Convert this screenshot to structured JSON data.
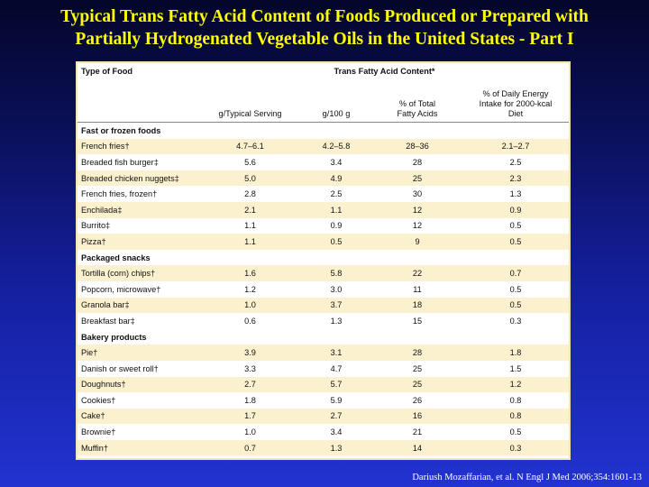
{
  "title": {
    "line1": "Typical Trans Fatty Acid Content of Foods Produced or Prepared with",
    "line2": "Partially Hydrogenated Vegetable Oils in the United States - Part I"
  },
  "table": {
    "header_type": "Type of Food",
    "header_tfa": "Trans Fatty Acid Content*",
    "col_serving": "g/Typical Serving",
    "col_100g": "g/100 g",
    "col_pct_line1": "% of Total",
    "col_pct_line2": "Fatty Acids",
    "col_energy_line1": "% of Daily Energy",
    "col_energy_line2": "Intake for 2000-kcal",
    "col_energy_line3": "Diet",
    "sections": [
      {
        "name": "Fast or frozen foods",
        "rows": [
          {
            "food": "French fries†",
            "serving": "4.7–6.1",
            "per100": "4.2–5.8",
            "pct": "28–36",
            "energy": "2.1–2.7"
          },
          {
            "food": "Breaded fish burger‡",
            "serving": "5.6",
            "per100": "3.4",
            "pct": "28",
            "energy": "2.5"
          },
          {
            "food": "Breaded chicken nuggets‡",
            "serving": "5.0",
            "per100": "4.9",
            "pct": "25",
            "energy": "2.3"
          },
          {
            "food": "French fries, frozen†",
            "serving": "2.8",
            "per100": "2.5",
            "pct": "30",
            "energy": "1.3"
          },
          {
            "food": "Enchilada‡",
            "serving": "2.1",
            "per100": "1.1",
            "pct": "12",
            "energy": "0.9"
          },
          {
            "food": "Burrito‡",
            "serving": "1.1",
            "per100": "0.9",
            "pct": "12",
            "energy": "0.5"
          },
          {
            "food": "Pizza†",
            "serving": "1.1",
            "per100": "0.5",
            "pct": "9",
            "energy": "0.5"
          }
        ]
      },
      {
        "name": "Packaged snacks",
        "rows": [
          {
            "food": "Tortilla (corn) chips†",
            "serving": "1.6",
            "per100": "5.8",
            "pct": "22",
            "energy": "0.7"
          },
          {
            "food": "Popcorn, microwave†",
            "serving": "1.2",
            "per100": "3.0",
            "pct": "11",
            "energy": "0.5"
          },
          {
            "food": "Granola bar‡",
            "serving": "1.0",
            "per100": "3.7",
            "pct": "18",
            "energy": "0.5"
          },
          {
            "food": "Breakfast bar‡",
            "serving": "0.6",
            "per100": "1.3",
            "pct": "15",
            "energy": "0.3"
          }
        ]
      },
      {
        "name": "Bakery products",
        "rows": [
          {
            "food": "Pie†",
            "serving": "3.9",
            "per100": "3.1",
            "pct": "28",
            "energy": "1.8"
          },
          {
            "food": "Danish or sweet roll†",
            "serving": "3.3",
            "per100": "4.7",
            "pct": "25",
            "energy": "1.5"
          },
          {
            "food": "Doughnuts†",
            "serving": "2.7",
            "per100": "5.7",
            "pct": "25",
            "energy": "1.2"
          },
          {
            "food": "Cookies†",
            "serving": "1.8",
            "per100": "5.9",
            "pct": "26",
            "energy": "0.8"
          },
          {
            "food": "Cake†",
            "serving": "1.7",
            "per100": "2.7",
            "pct": "16",
            "energy": "0.8"
          },
          {
            "food": "Brownie†",
            "serving": "1.0",
            "per100": "3.4",
            "pct": "21",
            "energy": "0.5"
          },
          {
            "food": "Muffin†",
            "serving": "0.7",
            "per100": "1.3",
            "pct": "14",
            "energy": "0.3"
          }
        ]
      }
    ]
  },
  "citation": "Dariush Mozaffarian, et al. N Engl J Med 2006;354:1601-13",
  "colors": {
    "title": "#ffff00",
    "row_shade": "#fbf1cf",
    "table_border": "#f3e6b0"
  }
}
